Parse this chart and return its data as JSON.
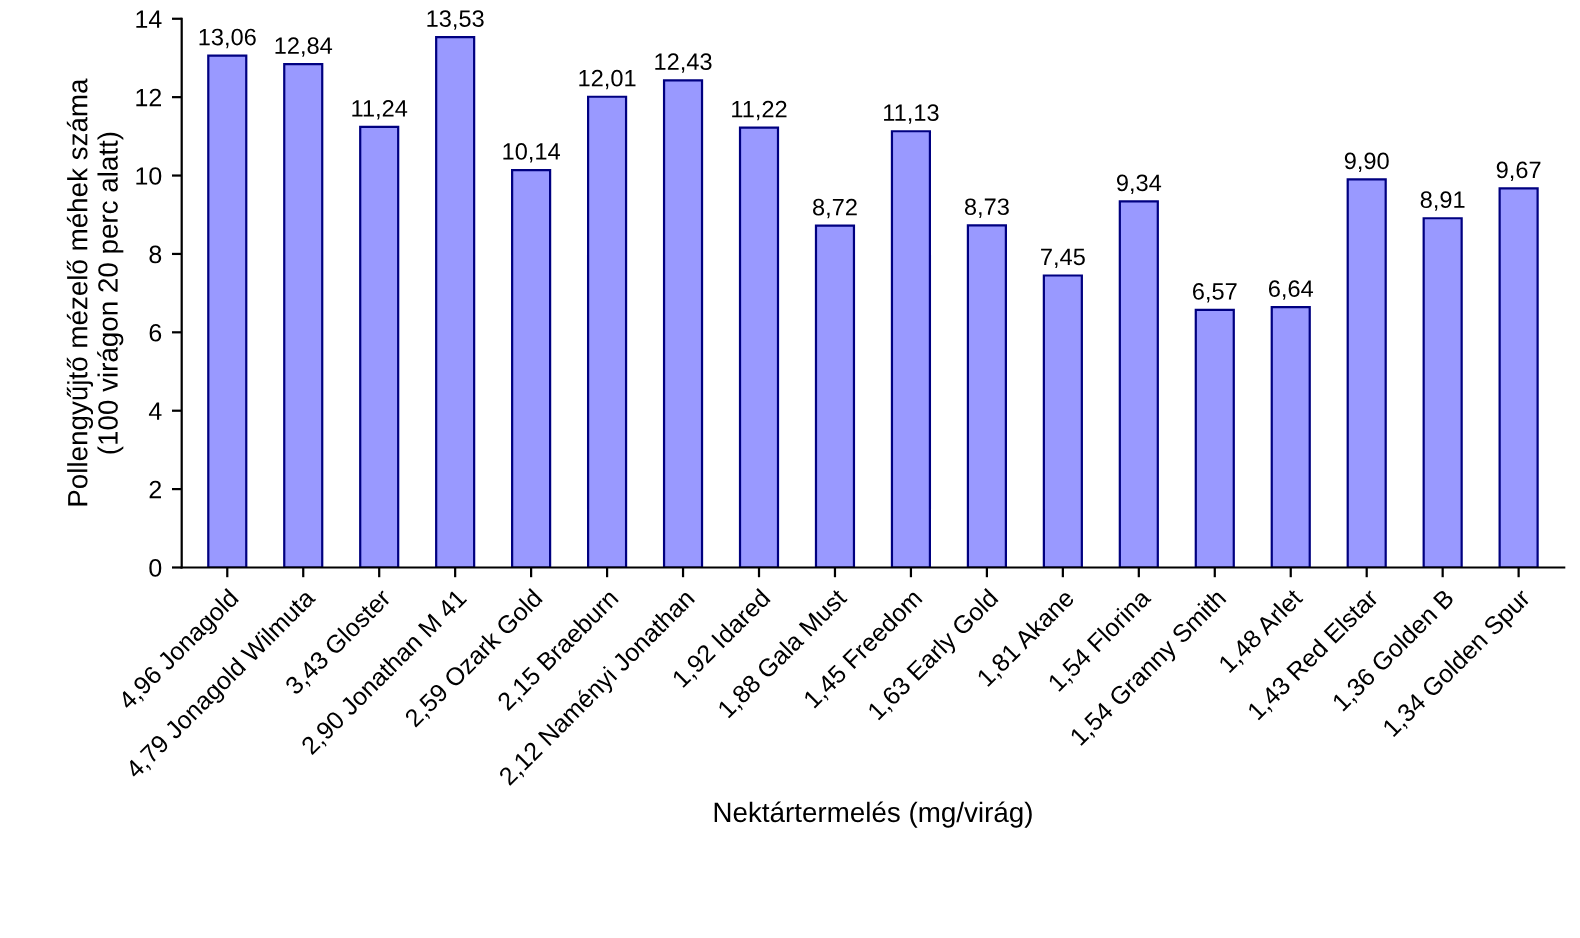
{
  "chart_data": {
    "type": "bar",
    "xlabel": "Nektártermelés (mg/virág)",
    "ylabel": "Pollengyűjtő mézelő méhek száma\n(100 virágon 20 perc alatt)",
    "categories": [
      "4,96 Jonagold",
      "4,79 Jonagold Wilmuta",
      "3,43 Gloster",
      "2,90 Jonathan M 41",
      "2,59 Ozark Gold",
      "2,15 Braeburn",
      "2,12 Naményi Jonathan",
      "1,92 Idared",
      "1,88 Gala Must",
      "1,45 Freedom",
      "1,63 Early Gold",
      "1,81 Akane",
      "1,54 Florina",
      "1,54 Granny Smith",
      "1,48 Arlet",
      "1,43 Red Elstar",
      "1,36 Golden B",
      "1,34 Golden Spur"
    ],
    "values": [
      13.06,
      12.84,
      11.24,
      13.53,
      10.14,
      12.01,
      12.43,
      11.22,
      8.72,
      11.13,
      8.73,
      7.45,
      9.34,
      6.57,
      6.64,
      9.9,
      8.91,
      9.67
    ],
    "value_labels": [
      "13,06",
      "12,84",
      "11,24",
      "13,53",
      "10,14",
      "12,01",
      "12,43",
      "11,22",
      "8,72",
      "11,13",
      "8,73",
      "7,45",
      "9,34",
      "6,57",
      "6,64",
      "9,90",
      "8,91",
      "9,67"
    ],
    "color": "#9999ff",
    "ylim": [
      0,
      14
    ],
    "yticks": [
      0,
      2,
      4,
      6,
      8,
      10,
      12,
      14
    ],
    "grid": false,
    "legend": false
  }
}
